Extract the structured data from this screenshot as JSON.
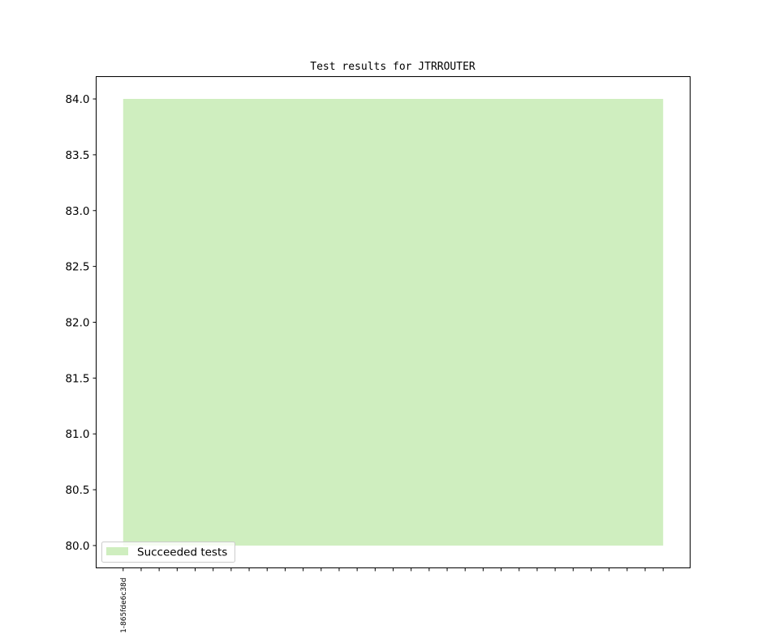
{
  "chart_data": {
    "type": "area",
    "title": "Test results for JTRROUTER",
    "xlabel": "",
    "ylabel": "",
    "x_tick_labels": [
      "1-865fde6c38d"
    ],
    "x": [
      0,
      1,
      2,
      3,
      4,
      5,
      6,
      7,
      8,
      9,
      10,
      11,
      12,
      13,
      14,
      15,
      16,
      17,
      18,
      19,
      20,
      21,
      22,
      23,
      24,
      25,
      26,
      27,
      28,
      29,
      30
    ],
    "xlim": [
      -1.5,
      31.5
    ],
    "ylim": [
      79.8,
      84.2
    ],
    "yticks": [
      "80.0",
      "80.5",
      "81.0",
      "81.5",
      "82.0",
      "82.5",
      "83.0",
      "83.5",
      "84.0"
    ],
    "baseline": 80,
    "series": [
      {
        "name": "Succeeded tests",
        "color": "#cfeebf",
        "values": [
          84,
          84,
          84,
          84,
          84,
          84,
          84,
          84,
          84,
          84,
          84,
          84,
          84,
          84,
          84,
          84,
          84,
          84,
          84,
          84,
          84,
          84,
          84,
          84,
          84,
          84,
          84,
          84,
          84,
          84,
          84
        ]
      }
    ],
    "grid": false,
    "legend": "lower-left"
  }
}
